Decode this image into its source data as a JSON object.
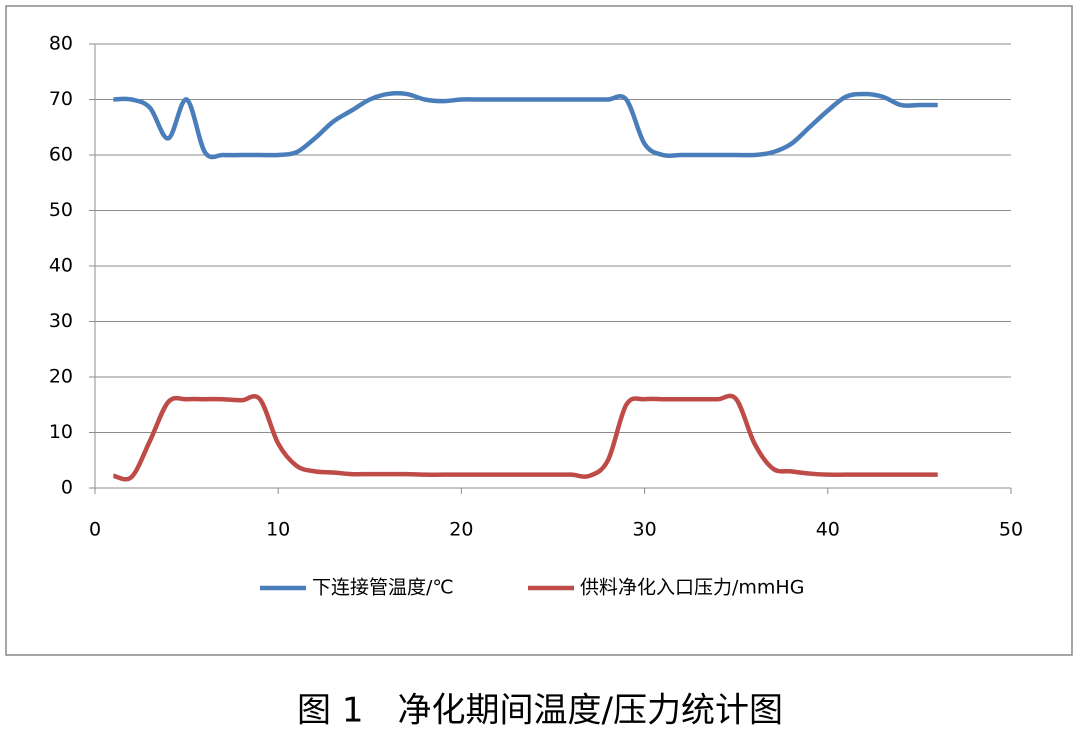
{
  "chart_data": {
    "type": "line",
    "caption": "图 1　净化期间温度/压力统计图",
    "x": [
      1,
      2,
      3,
      4,
      5,
      6,
      7,
      8,
      9,
      10,
      11,
      12,
      13,
      14,
      15,
      16,
      17,
      18,
      19,
      20,
      21,
      22,
      23,
      24,
      25,
      26,
      27,
      28,
      29,
      30,
      31,
      32,
      33,
      34,
      35,
      36,
      37,
      38,
      39,
      40,
      41,
      42,
      43,
      44,
      45,
      46
    ],
    "series": [
      {
        "name": "下连接管温度/℃",
        "color": "#4a7ebb",
        "values": [
          70,
          70,
          68.5,
          63,
          70,
          60.5,
          60,
          60,
          60,
          60,
          60.5,
          63,
          66,
          68,
          70,
          71,
          71,
          70,
          69.7,
          70,
          70,
          70,
          70,
          70,
          70,
          70,
          70,
          70,
          70,
          62,
          60,
          60,
          60,
          60,
          60,
          60,
          60.5,
          62,
          65,
          68,
          70.5,
          71,
          70.5,
          69,
          69,
          69
        ]
      },
      {
        "name": "供料净化入口压力/mmHG",
        "color": "#be4b48",
        "values": [
          2.2,
          2,
          8.5,
          15.5,
          16,
          16,
          16,
          15.8,
          16,
          8,
          4,
          3,
          2.8,
          2.5,
          2.5,
          2.5,
          2.5,
          2.4,
          2.4,
          2.4,
          2.4,
          2.4,
          2.4,
          2.4,
          2.4,
          2.4,
          2.2,
          5,
          15,
          16,
          16,
          16,
          16,
          16,
          16,
          8,
          3.5,
          3,
          2.6,
          2.4,
          2.4,
          2.4,
          2.4,
          2.4,
          2.4,
          2.4
        ]
      }
    ],
    "xlim": [
      0,
      50
    ],
    "xticks": [
      0,
      10,
      20,
      30,
      40,
      50
    ],
    "ylim": [
      0,
      80
    ],
    "yticks": [
      0,
      10,
      20,
      30,
      40,
      50,
      60,
      70,
      80
    ],
    "grid": true,
    "legend": "bottom"
  }
}
